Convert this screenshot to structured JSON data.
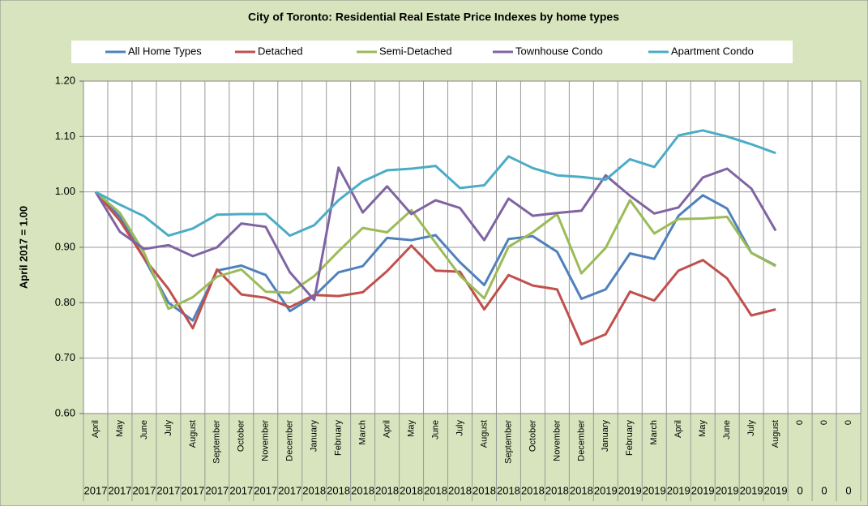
{
  "chart_data": {
    "type": "line",
    "title": "City of Toronto:  Residential Real Estate Price Indexes by home types",
    "y_label": "April 2017 = 1.00",
    "categories": [
      "April",
      "May",
      "June",
      "July",
      "August",
      "September",
      "October",
      "November",
      "December",
      "January",
      "February",
      "March",
      "April",
      "May",
      "June",
      "July",
      "August",
      "September",
      "October",
      "November",
      "December",
      "January",
      "February",
      "March",
      "April",
      "May",
      "June",
      "July",
      "August",
      "0",
      "0",
      "0"
    ],
    "category_years": [
      "2017",
      "2017",
      "2017",
      "2017",
      "2017",
      "2017",
      "2017",
      "2017",
      "2017",
      "2018",
      "2018",
      "2018",
      "2018",
      "2018",
      "2018",
      "2018",
      "2018",
      "2018",
      "2018",
      "2018",
      "2018",
      "2019",
      "2019",
      "2019",
      "2019",
      "2019",
      "2019",
      "2019",
      "2019",
      "0",
      "0",
      "0"
    ],
    "ylim": [
      0.6,
      1.2
    ],
    "yticks": [
      {
        "value": 0.6,
        "label": "0.60"
      },
      {
        "value": 0.7,
        "label": "0.70"
      },
      {
        "value": 0.8,
        "label": "0.80"
      },
      {
        "value": 0.9,
        "label": "0.90"
      },
      {
        "value": 1.0,
        "label": "1.00"
      },
      {
        "value": 1.1,
        "label": "1.10"
      },
      {
        "value": 1.2,
        "label": "1.20"
      }
    ],
    "grid": true,
    "legend": "top",
    "series": [
      {
        "name": "All Home Types",
        "color": "#4f81bd",
        "values": [
          1.0,
          0.955,
          0.88,
          0.8,
          0.768,
          0.858,
          0.867,
          0.85,
          0.785,
          0.812,
          0.855,
          0.866,
          0.917,
          0.913,
          0.922,
          0.873,
          0.832,
          0.915,
          0.92,
          0.892,
          0.807,
          0.824,
          0.889,
          0.879,
          0.957,
          0.994,
          0.97,
          0.89,
          0.867,
          null,
          null,
          null
        ]
      },
      {
        "name": "Detached",
        "color": "#c0504d",
        "values": [
          1.0,
          0.948,
          0.88,
          0.825,
          0.754,
          0.86,
          0.815,
          0.809,
          0.792,
          0.814,
          0.812,
          0.819,
          0.857,
          0.903,
          0.858,
          0.856,
          0.788,
          0.85,
          0.831,
          0.824,
          0.725,
          0.743,
          0.82,
          0.804,
          0.858,
          0.877,
          0.844,
          0.777,
          0.788,
          null,
          null,
          null
        ]
      },
      {
        "name": "Semi-Detached",
        "color": "#9bbb59",
        "values": [
          1.0,
          0.962,
          0.89,
          0.789,
          0.81,
          0.847,
          0.86,
          0.82,
          0.818,
          0.848,
          0.893,
          0.935,
          0.927,
          0.967,
          0.908,
          0.849,
          0.808,
          0.901,
          0.927,
          0.96,
          0.853,
          0.899,
          0.985,
          0.925,
          0.951,
          0.952,
          0.955,
          0.89,
          0.866,
          null,
          null,
          null
        ]
      },
      {
        "name": "Townhouse Condo",
        "color": "#8064a2",
        "values": [
          1.0,
          0.928,
          0.897,
          0.904,
          0.884,
          0.9,
          0.943,
          0.937,
          0.855,
          0.805,
          1.044,
          0.963,
          1.01,
          0.96,
          0.985,
          0.971,
          0.913,
          0.988,
          0.957,
          0.962,
          0.966,
          1.03,
          0.993,
          0.961,
          0.972,
          1.026,
          1.042,
          1.006,
          0.93,
          null,
          null,
          null
        ]
      },
      {
        "name": "Apartment Condo",
        "color": "#4bacc6",
        "values": [
          1.0,
          0.977,
          0.956,
          0.921,
          0.934,
          0.959,
          0.96,
          0.96,
          0.921,
          0.94,
          0.985,
          1.019,
          1.039,
          1.042,
          1.047,
          1.007,
          1.012,
          1.064,
          1.043,
          1.03,
          1.027,
          1.022,
          1.059,
          1.045,
          1.102,
          1.111,
          1.1,
          1.086,
          1.07,
          null,
          null,
          null
        ]
      }
    ]
  }
}
